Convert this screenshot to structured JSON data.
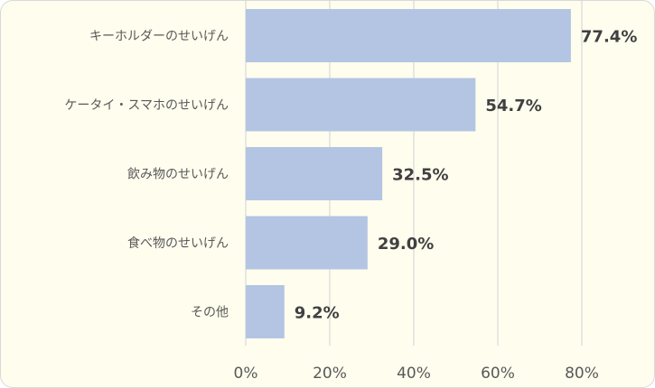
{
  "chart_data": {
    "type": "bar",
    "orientation": "horizontal",
    "categories": [
      "キーホルダーのせいげん",
      "ケータイ・スマホのせいげん",
      "飲み物のせいげん",
      "食べ物のせいげん",
      "その他"
    ],
    "values": [
      77.4,
      54.7,
      32.5,
      29.0,
      9.2
    ],
    "value_labels": [
      "77.4%",
      "54.7%",
      "32.5%",
      "29.0%",
      "9.2%"
    ],
    "x_ticks": [
      "0%",
      "20%",
      "40%",
      "60%",
      "80%"
    ],
    "xlim": [
      0,
      80
    ],
    "grid": true,
    "legend": "none",
    "bar_color": "#b3c5e3",
    "background_color": "#fffdee"
  }
}
